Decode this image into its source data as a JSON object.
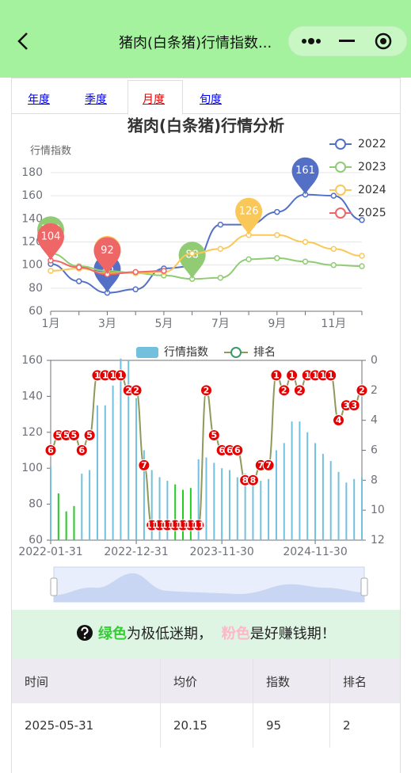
{
  "header": {
    "title": "猪肉(白条猪)行情指数..."
  },
  "tabs": [
    "年度",
    "季度",
    "月度",
    "旬度"
  ],
  "chart_data": [
    {
      "type": "line",
      "title": "猪肉(白条猪)行情分析",
      "y_label": "行情指数",
      "categories": [
        "1月",
        null,
        "3月",
        null,
        "5月",
        null,
        "7月",
        null,
        "9月",
        null,
        "11月",
        null
      ],
      "ylim": [
        60,
        180
      ],
      "yticks": [
        60,
        80,
        100,
        120,
        140,
        160,
        180
      ],
      "grid": true,
      "legend": "right",
      "series": [
        {
          "name": "2022",
          "color": "#5470c6",
          "values": [
            101,
            86,
            76,
            79,
            97,
            99,
            135,
            135,
            146,
            161,
            160,
            139
          ]
        },
        {
          "name": "2023",
          "color": "#91cc75",
          "values": [
            110,
            99,
            95,
            93,
            91,
            88,
            89,
            105,
            106,
            103,
            100,
            99
          ]
        },
        {
          "name": "2024",
          "color": "#fac858",
          "values": [
            95,
            97,
            93,
            93,
            94,
            110,
            114,
            126,
            126,
            120,
            114,
            108
          ]
        },
        {
          "name": "2025",
          "color": "#ee6666",
          "values": [
            104,
            98,
            92,
            94,
            95,
            null,
            null,
            null,
            null,
            null,
            null,
            null
          ]
        }
      ]
    },
    {
      "type": "bar-line",
      "categories": [
        "2022-01-31",
        null,
        null,
        null,
        null,
        null,
        null,
        null,
        null,
        null,
        null,
        "2022-12-31",
        null,
        null,
        null,
        null,
        null,
        null,
        null,
        null,
        null,
        null,
        "2023-11-30",
        null,
        null,
        null,
        null,
        null,
        null,
        null,
        null,
        null,
        null,
        null,
        "2024-11-30",
        null,
        null,
        null,
        null,
        null,
        null
      ],
      "ylim": [
        60,
        160
      ],
      "yticks": [
        60,
        80,
        100,
        120,
        140,
        160
      ],
      "y2lim": [
        0,
        12
      ],
      "y2ticks": [
        0,
        2,
        4,
        6,
        8,
        10,
        12
      ],
      "y2_inverse": true,
      "grid": false,
      "legend": "top",
      "series": [
        {
          "name": "行情指数",
          "type": "bar",
          "color": "#73c0de",
          "values": [
            101,
            86,
            76,
            79,
            97,
            99,
            135,
            135,
            146,
            161,
            160,
            139,
            110,
            99,
            95,
            93,
            91,
            88,
            89,
            105,
            106,
            103,
            100,
            99,
            95,
            97,
            93,
            93,
            94,
            110,
            114,
            126,
            126,
            120,
            114,
            108,
            104,
            98,
            92,
            94,
            95
          ],
          "colors": [
            "#73c0de",
            "#22cc22",
            "#22cc22",
            "#22cc22",
            "#73c0de",
            "#73c0de",
            "#73c0de",
            "#73c0de",
            "#73c0de",
            "#73c0de",
            "#73c0de",
            "#73c0de",
            "#73c0de",
            "#73c0de",
            "#73c0de",
            "#73c0de",
            "#22cc22",
            "#22cc22",
            "#22cc22",
            "#73c0de",
            "#73c0de",
            "#73c0de",
            "#73c0de",
            "#73c0de",
            "#73c0de",
            "#73c0de",
            "#73c0de",
            "#73c0de",
            "#73c0de",
            "#73c0de",
            "#73c0de",
            "#73c0de",
            "#73c0de",
            "#73c0de",
            "#73c0de",
            "#73c0de",
            "#73c0de",
            "#73c0de",
            "#73c0de",
            "#73c0de",
            "#73c0de"
          ]
        },
        {
          "name": "排名",
          "type": "line",
          "axis": "y2",
          "color": "#8f9a5a",
          "label_color": "#e60000",
          "values": [
            6,
            5,
            5,
            5,
            6,
            5,
            1,
            1,
            1,
            1,
            2,
            2,
            7,
            11,
            11,
            11,
            11,
            11,
            11,
            11,
            2,
            5,
            6,
            6,
            6,
            8,
            8,
            7,
            7,
            1,
            2,
            1,
            2,
            1,
            1,
            1,
            1,
            4,
            3,
            3,
            2
          ]
        }
      ]
    }
  ],
  "notice": {
    "green": "绿色",
    "text1": "为极低迷期，",
    "pink": "粉色",
    "text2": "是好赚钱期！"
  },
  "table": {
    "columns": [
      "时间",
      "均价",
      "指数",
      "排名"
    ],
    "rows": [
      [
        "2025-05-31",
        "20.15",
        "95",
        "2"
      ]
    ]
  }
}
